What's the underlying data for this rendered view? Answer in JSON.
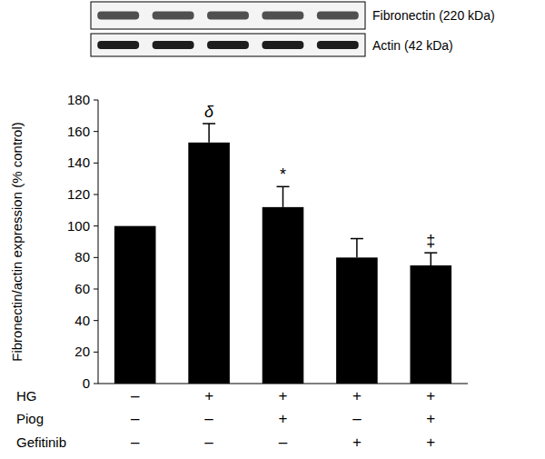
{
  "chart_data": {
    "type": "bar",
    "y_label": "Fibronectin/actin expression (% control)",
    "categories": [
      null,
      null,
      null,
      null,
      null
    ],
    "values": [
      100,
      153,
      112,
      80,
      75
    ],
    "errors": [
      null,
      12,
      13,
      12,
      8
    ],
    "significance": [
      null,
      "δ",
      "*",
      null,
      "‡"
    ],
    "color": "#000000",
    "ylim": [
      0,
      180
    ],
    "yticks": [
      0,
      20,
      40,
      60,
      80,
      100,
      120,
      140,
      160,
      180
    ],
    "grid": false,
    "treatments": [
      {
        "label": "HG",
        "values": [
          "–",
          "+",
          "+",
          "+",
          "+"
        ]
      },
      {
        "label": "Piog",
        "values": [
          "–",
          "–",
          "+",
          "–",
          "+"
        ]
      },
      {
        "label": "Gefitinib",
        "values": [
          "–",
          "–",
          "–",
          "+",
          "+"
        ]
      }
    ],
    "blot": [
      "Fibronectin (220 kDa)",
      "Actin (42 kDa)"
    ]
  }
}
